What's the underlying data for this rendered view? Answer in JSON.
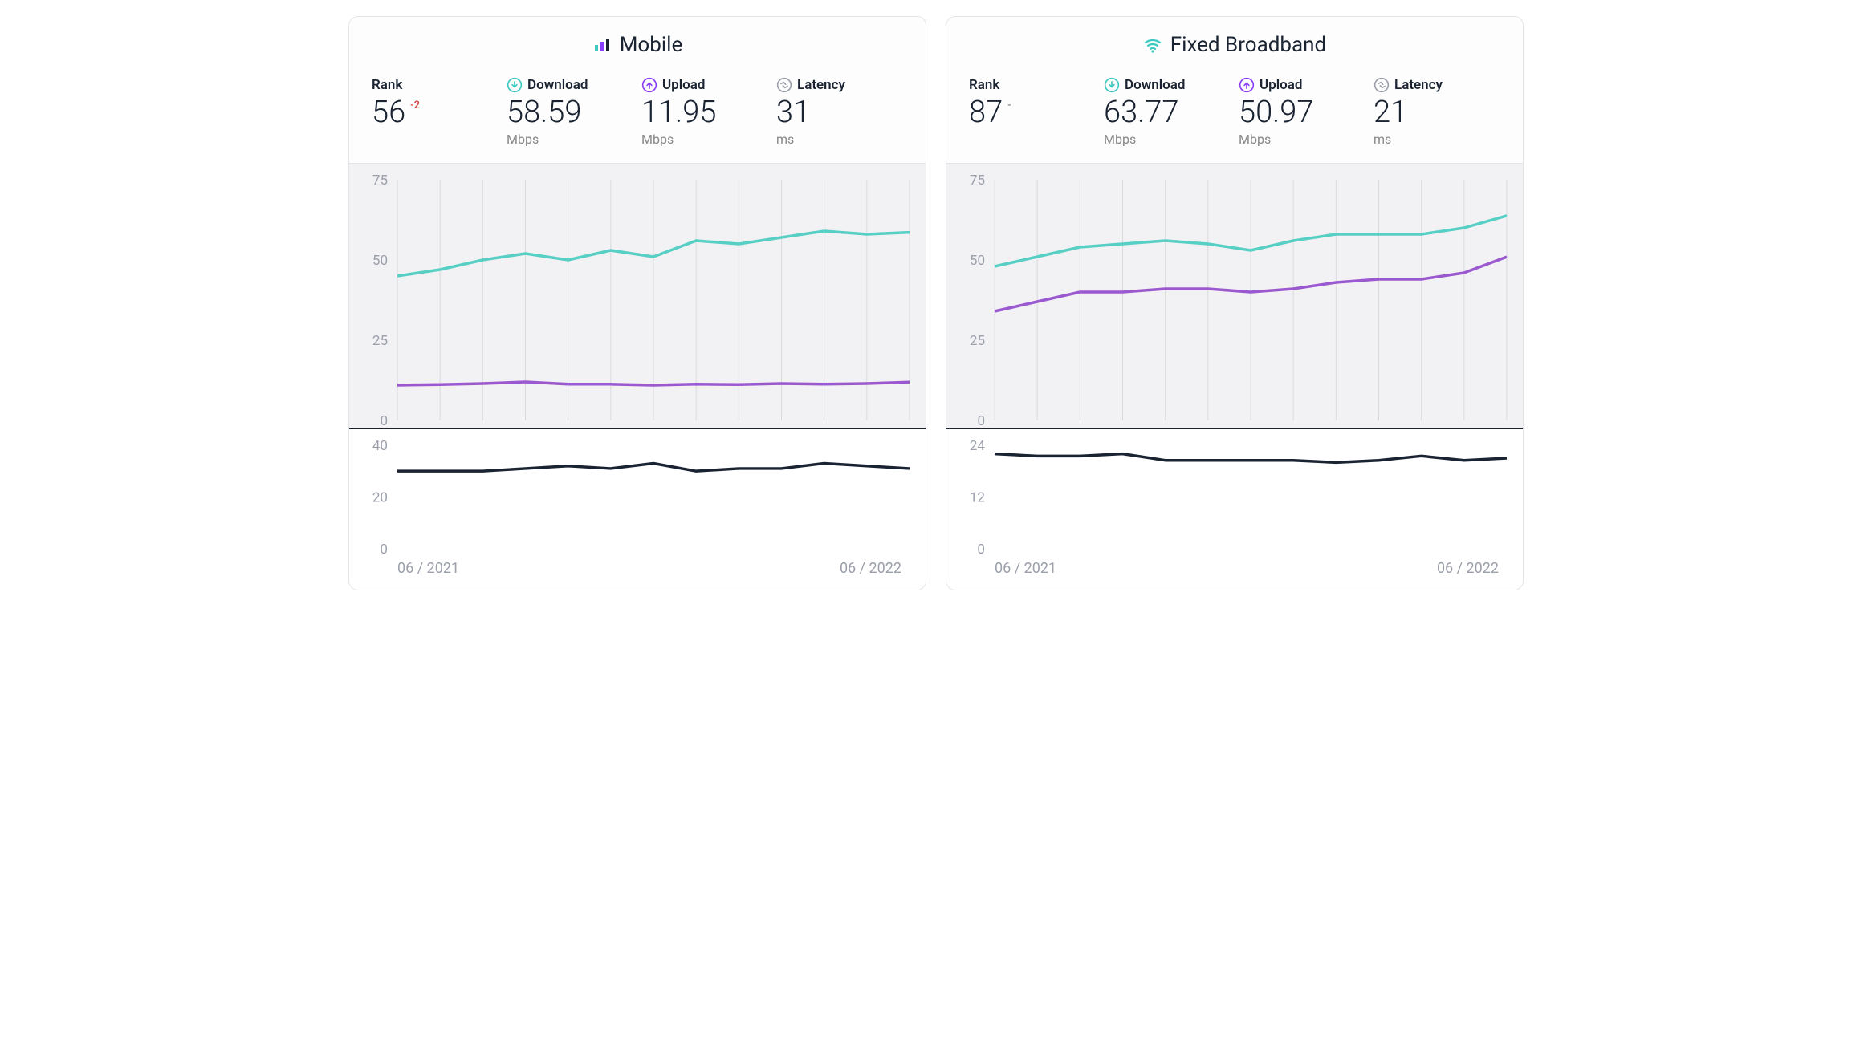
{
  "panels": [
    {
      "id": "mobile",
      "title": "Mobile",
      "icon": "bars-icon",
      "icon_colors": [
        "#3bc9c0",
        "#8a3ffc",
        "#1a2332"
      ],
      "metrics": {
        "rank": {
          "label": "Rank",
          "value": "56",
          "delta": "-2",
          "delta_class": "delta-neg",
          "unit": ""
        },
        "download": {
          "label": "Download",
          "value": "58.59",
          "unit": "Mbps",
          "icon": "down-circle",
          "icon_color": "#3bc9c0"
        },
        "upload": {
          "label": "Upload",
          "value": "11.95",
          "unit": "Mbps",
          "icon": "up-circle",
          "icon_color": "#8a3ffc"
        },
        "latency": {
          "label": "Latency",
          "value": "31",
          "unit": "ms",
          "icon": "latency-circle",
          "icon_color": "#9ca0ab"
        }
      },
      "main_chart": {
        "type": "line",
        "ylim": [
          0,
          75
        ],
        "yticks": [
          0,
          25,
          50,
          75
        ],
        "n_points": 13,
        "background_color": "#f2f2f4",
        "grid_color": "#d9dade",
        "series": [
          {
            "name": "download",
            "color": "#57cfc4",
            "values": [
              45,
              47,
              50,
              52,
              50,
              53,
              51,
              56,
              55,
              57,
              59,
              58,
              58.59
            ]
          },
          {
            "name": "upload",
            "color": "#9b59d0",
            "values": [
              11,
              11.2,
              11.5,
              12,
              11.3,
              11.3,
              11,
              11.3,
              11.2,
              11.5,
              11.3,
              11.5,
              11.95
            ]
          }
        ]
      },
      "sub_chart": {
        "type": "line",
        "ylim": [
          0,
          40
        ],
        "yticks": [
          0,
          20,
          40
        ],
        "n_points": 13,
        "background_color": "#ffffff",
        "series": [
          {
            "name": "latency",
            "color": "#1a2332",
            "values": [
              30,
              30,
              30,
              31,
              32,
              31,
              33,
              30,
              31,
              31,
              33,
              32,
              31
            ]
          }
        ]
      },
      "x_axis": {
        "start": "06 / 2021",
        "end": "06 / 2022"
      }
    },
    {
      "id": "broadband",
      "title": "Fixed Broadband",
      "icon": "wifi-icon",
      "icon_color": "#3bc9c0",
      "metrics": {
        "rank": {
          "label": "Rank",
          "value": "87",
          "delta": "-",
          "delta_class": "delta-dash",
          "unit": ""
        },
        "download": {
          "label": "Download",
          "value": "63.77",
          "unit": "Mbps",
          "icon": "down-circle",
          "icon_color": "#3bc9c0"
        },
        "upload": {
          "label": "Upload",
          "value": "50.97",
          "unit": "Mbps",
          "icon": "up-circle",
          "icon_color": "#8a3ffc"
        },
        "latency": {
          "label": "Latency",
          "value": "21",
          "unit": "ms",
          "icon": "latency-circle",
          "icon_color": "#9ca0ab"
        }
      },
      "main_chart": {
        "type": "line",
        "ylim": [
          0,
          75
        ],
        "yticks": [
          0,
          25,
          50,
          75
        ],
        "n_points": 13,
        "background_color": "#f2f2f4",
        "grid_color": "#d9dade",
        "series": [
          {
            "name": "download",
            "color": "#57cfc4",
            "values": [
              48,
              51,
              54,
              55,
              56,
              55,
              53,
              56,
              58,
              58,
              58,
              60,
              63.77
            ]
          },
          {
            "name": "upload",
            "color": "#9b59d0",
            "values": [
              34,
              37,
              40,
              40,
              41,
              41,
              40,
              41,
              43,
              44,
              44,
              46,
              50.97
            ]
          }
        ]
      },
      "sub_chart": {
        "type": "line",
        "ylim": [
          0,
          24
        ],
        "yticks": [
          0,
          12,
          24
        ],
        "n_points": 13,
        "background_color": "#ffffff",
        "series": [
          {
            "name": "latency",
            "color": "#1a2332",
            "values": [
              22,
              21.5,
              21.5,
              22,
              20.5,
              20.5,
              20.5,
              20.5,
              20,
              20.5,
              21.5,
              20.5,
              21
            ]
          }
        ]
      },
      "x_axis": {
        "start": "06 / 2021",
        "end": "06 / 2022"
      }
    }
  ],
  "typography": {
    "title_fontsize": 26,
    "metric_label_fontsize": 17,
    "metric_value_fontsize": 38,
    "axis_fontsize": 17
  },
  "line_width": 3.5
}
